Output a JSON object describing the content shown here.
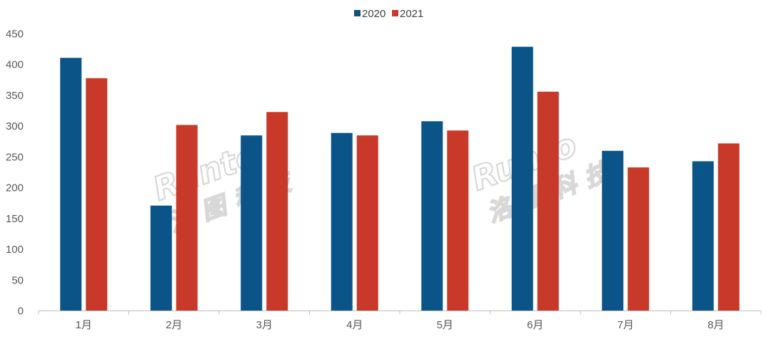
{
  "colors": {
    "2020": "#0b5487",
    "2021": "#c8392a",
    "axis": "#bfbfbf",
    "text": "#595959"
  },
  "watermark": {
    "brand": "Runto",
    "cn": "洛图科技"
  },
  "chart_data": {
    "type": "bar",
    "categories": [
      "1月",
      "2月",
      "3月",
      "4月",
      "5月",
      "6月",
      "7月",
      "8月"
    ],
    "series": [
      {
        "name": "2020",
        "values": [
          411,
          171,
          285,
          289,
          308,
          429,
          260,
          243
        ]
      },
      {
        "name": "2021",
        "values": [
          378,
          302,
          323,
          285,
          293,
          356,
          233,
          272
        ]
      }
    ],
    "yticks": [
      0,
      50,
      100,
      150,
      200,
      250,
      300,
      350,
      400,
      450
    ],
    "ylim": [
      0,
      450
    ],
    "title": "",
    "xlabel": "",
    "ylabel": "",
    "legend": "top-center",
    "grid": false
  }
}
